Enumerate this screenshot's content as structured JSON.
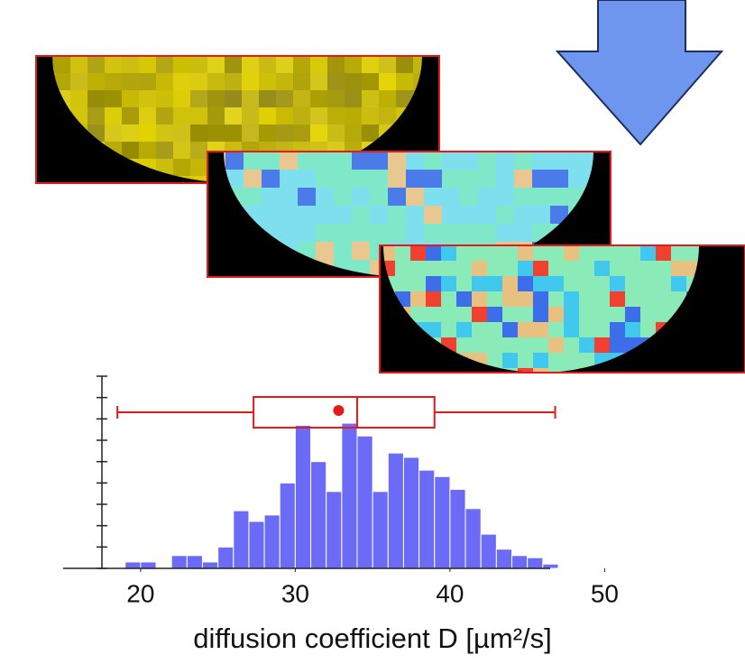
{
  "chart_data": {
    "type": "histogram",
    "xlabel": "diffusion coefficient D [µm²/s]",
    "bins": [
      19,
      20,
      21,
      22,
      23,
      24,
      25,
      26,
      27,
      28,
      29,
      30,
      31,
      32,
      33,
      34,
      35,
      36,
      37,
      38,
      39,
      40,
      41,
      42,
      43,
      44,
      45,
      46,
      47
    ],
    "counts": [
      0.3,
      0.3,
      0,
      0.6,
      0.6,
      0.3,
      1,
      2.7,
      2.2,
      2.5,
      4,
      6.7,
      5,
      3.6,
      6.8,
      6.2,
      3.6,
      5.4,
      5.2,
      4.6,
      4.3,
      3.7,
      2.8,
      1.6,
      0.9,
      0.6,
      0.5,
      0.2
    ],
    "color": "#6b6bf7",
    "xlim": [
      17.5,
      50.5
    ],
    "xticks": [
      20,
      30,
      40,
      50
    ],
    "ylim": [
      0,
      9
    ],
    "yticks": [
      0,
      1,
      2,
      3,
      4,
      5,
      6,
      7,
      8,
      9
    ],
    "boxplot": {
      "whisker_low": 18.5,
      "q1": 27.3,
      "median": 34,
      "q3": 39,
      "whisker_high": 46.8,
      "mean": 32.8,
      "color": "#e8191b"
    }
  }
}
